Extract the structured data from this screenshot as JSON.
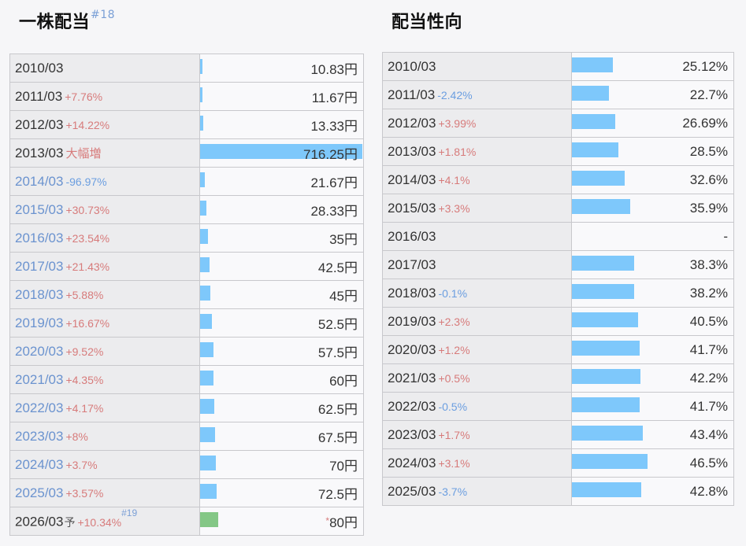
{
  "dividend_per_share": {
    "title": "一株配当",
    "title_note": "#18",
    "unit": "円",
    "bar_color": "#7ec8fb",
    "forecast_bar_color": "#84c786",
    "rows": [
      {
        "year": "2010/03",
        "year_color": "dark",
        "change": "",
        "change_dir": "",
        "value": "10.83円",
        "amount": 10.83
      },
      {
        "year": "2011/03",
        "year_color": "dark",
        "change": "+7.76%",
        "change_dir": "up",
        "value": "11.67円",
        "amount": 11.67
      },
      {
        "year": "2012/03",
        "year_color": "dark",
        "change": "+14.22%",
        "change_dir": "up",
        "value": "13.33円",
        "amount": 13.33
      },
      {
        "year": "2013/03",
        "year_color": "dark",
        "change": "大幅増",
        "change_dir": "big",
        "value": "716.25円",
        "amount": 716.25
      },
      {
        "year": "2014/03",
        "year_color": "blue",
        "change": "-96.97%",
        "change_dir": "down",
        "value": "21.67円",
        "amount": 21.67
      },
      {
        "year": "2015/03",
        "year_color": "blue",
        "change": "+30.73%",
        "change_dir": "up",
        "value": "28.33円",
        "amount": 28.33
      },
      {
        "year": "2016/03",
        "year_color": "blue",
        "change": "+23.54%",
        "change_dir": "up",
        "value": "35円",
        "amount": 35
      },
      {
        "year": "2017/03",
        "year_color": "blue",
        "change": "+21.43%",
        "change_dir": "up",
        "value": "42.5円",
        "amount": 42.5
      },
      {
        "year": "2018/03",
        "year_color": "blue",
        "change": "+5.88%",
        "change_dir": "up",
        "value": "45円",
        "amount": 45
      },
      {
        "year": "2019/03",
        "year_color": "blue",
        "change": "+16.67%",
        "change_dir": "up",
        "value": "52.5円",
        "amount": 52.5
      },
      {
        "year": "2020/03",
        "year_color": "blue",
        "change": "+9.52%",
        "change_dir": "up",
        "value": "57.5円",
        "amount": 57.5
      },
      {
        "year": "2021/03",
        "year_color": "blue",
        "change": "+4.35%",
        "change_dir": "up",
        "value": "60円",
        "amount": 60
      },
      {
        "year": "2022/03",
        "year_color": "blue",
        "change": "+4.17%",
        "change_dir": "up",
        "value": "62.5円",
        "amount": 62.5
      },
      {
        "year": "2023/03",
        "year_color": "blue",
        "change": "+8%",
        "change_dir": "up",
        "value": "67.5円",
        "amount": 67.5
      },
      {
        "year": "2024/03",
        "year_color": "blue",
        "change": "+3.7%",
        "change_dir": "up",
        "value": "70円",
        "amount": 70
      },
      {
        "year": "2025/03",
        "year_color": "blue",
        "change": "+3.57%",
        "change_dir": "up",
        "value": "72.5円",
        "amount": 72.5
      }
    ],
    "forecast_row": {
      "year": "2026/03",
      "forecast_mark": "予",
      "change": "+10.34%",
      "change_dir": "up",
      "note": "#19",
      "star": "*",
      "value": "80円",
      "amount": 80
    }
  },
  "payout_ratio": {
    "title": "配当性向",
    "bar_color": "#7ec8fb",
    "rows": [
      {
        "year": "2010/03",
        "change": "",
        "change_dir": "",
        "value": "25.12%",
        "pct": 25.12
      },
      {
        "year": "2011/03",
        "change": "-2.42%",
        "change_dir": "down",
        "value": "22.7%",
        "pct": 22.7
      },
      {
        "year": "2012/03",
        "change": "+3.99%",
        "change_dir": "up",
        "value": "26.69%",
        "pct": 26.69
      },
      {
        "year": "2013/03",
        "change": "+1.81%",
        "change_dir": "up",
        "value": "28.5%",
        "pct": 28.5
      },
      {
        "year": "2014/03",
        "change": "+4.1%",
        "change_dir": "up",
        "value": "32.6%",
        "pct": 32.6
      },
      {
        "year": "2015/03",
        "change": "+3.3%",
        "change_dir": "up",
        "value": "35.9%",
        "pct": 35.9
      },
      {
        "year": "2016/03",
        "change": "",
        "change_dir": "",
        "value": "-",
        "pct": 0
      },
      {
        "year": "2017/03",
        "change": "",
        "change_dir": "",
        "value": "38.3%",
        "pct": 38.3
      },
      {
        "year": "2018/03",
        "change": "-0.1%",
        "change_dir": "down",
        "value": "38.2%",
        "pct": 38.2
      },
      {
        "year": "2019/03",
        "change": "+2.3%",
        "change_dir": "up",
        "value": "40.5%",
        "pct": 40.5
      },
      {
        "year": "2020/03",
        "change": "+1.2%",
        "change_dir": "up",
        "value": "41.7%",
        "pct": 41.7
      },
      {
        "year": "2021/03",
        "change": "+0.5%",
        "change_dir": "up",
        "value": "42.2%",
        "pct": 42.2
      },
      {
        "year": "2022/03",
        "change": "-0.5%",
        "change_dir": "down",
        "value": "41.7%",
        "pct": 41.7
      },
      {
        "year": "2023/03",
        "change": "+1.7%",
        "change_dir": "up",
        "value": "43.4%",
        "pct": 43.4
      },
      {
        "year": "2024/03",
        "change": "+3.1%",
        "change_dir": "up",
        "value": "46.5%",
        "pct": 46.5
      },
      {
        "year": "2025/03",
        "change": "-3.7%",
        "change_dir": "down",
        "value": "42.8%",
        "pct": 42.8
      }
    ]
  }
}
